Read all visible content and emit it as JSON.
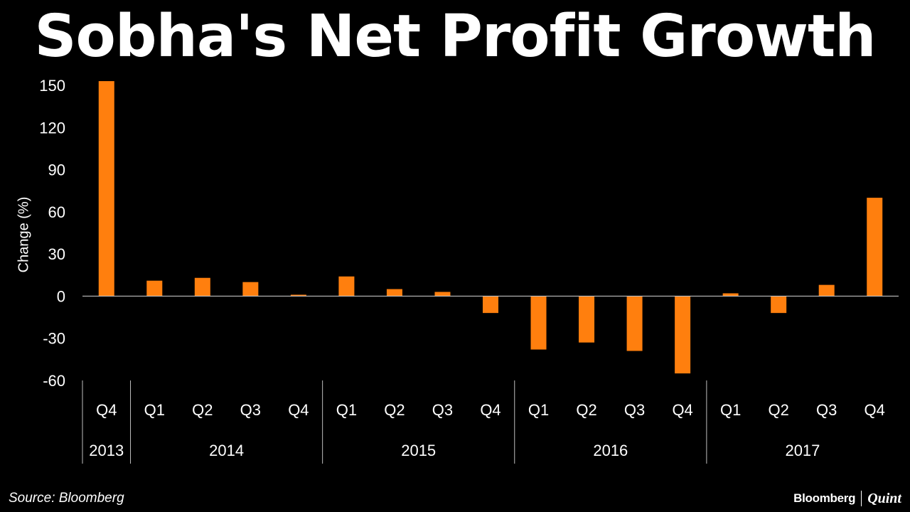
{
  "chart_data": {
    "type": "bar",
    "title": "Sobha's Net Profit Growth",
    "ylabel": "Change (%)",
    "xlabel": "",
    "ylim": [
      -60,
      150
    ],
    "yticks": [
      150,
      120,
      90,
      60,
      30,
      0,
      -30,
      -60
    ],
    "grid": false,
    "categories": [
      {
        "quarter": "Q4",
        "year": "2013",
        "value": 153
      },
      {
        "quarter": "Q1",
        "year": "2014",
        "value": 11
      },
      {
        "quarter": "Q2",
        "year": "2014",
        "value": 13
      },
      {
        "quarter": "Q3",
        "year": "2014",
        "value": 10
      },
      {
        "quarter": "Q4",
        "year": "2014",
        "value": 1
      },
      {
        "quarter": "Q1",
        "year": "2015",
        "value": 14
      },
      {
        "quarter": "Q2",
        "year": "2015",
        "value": 5
      },
      {
        "quarter": "Q3",
        "year": "2015",
        "value": 3
      },
      {
        "quarter": "Q4",
        "year": "2015",
        "value": -12
      },
      {
        "quarter": "Q1",
        "year": "2016",
        "value": -38
      },
      {
        "quarter": "Q2",
        "year": "2016",
        "value": -33
      },
      {
        "quarter": "Q3",
        "year": "2016",
        "value": -39
      },
      {
        "quarter": "Q4",
        "year": "2016",
        "value": -55
      },
      {
        "quarter": "Q1",
        "year": "2017",
        "value": 2
      },
      {
        "quarter": "Q2",
        "year": "2017",
        "value": -12
      },
      {
        "quarter": "Q3",
        "year": "2017",
        "value": 8
      },
      {
        "quarter": "Q4",
        "year": "2017",
        "value": 70
      }
    ],
    "year_groups": [
      {
        "label": "2013",
        "count": 1
      },
      {
        "label": "2014",
        "count": 4
      },
      {
        "label": "2015",
        "count": 4
      },
      {
        "label": "2016",
        "count": 4
      },
      {
        "label": "2017",
        "count": 4
      }
    ]
  },
  "colors": {
    "background": "#000000",
    "bar": "#ff7f0e",
    "axis": "#bfbfbf",
    "text": "#ffffff"
  },
  "footer": {
    "source": "Source: Bloomberg",
    "brand_left": "Bloomberg",
    "brand_right": "Quint"
  }
}
